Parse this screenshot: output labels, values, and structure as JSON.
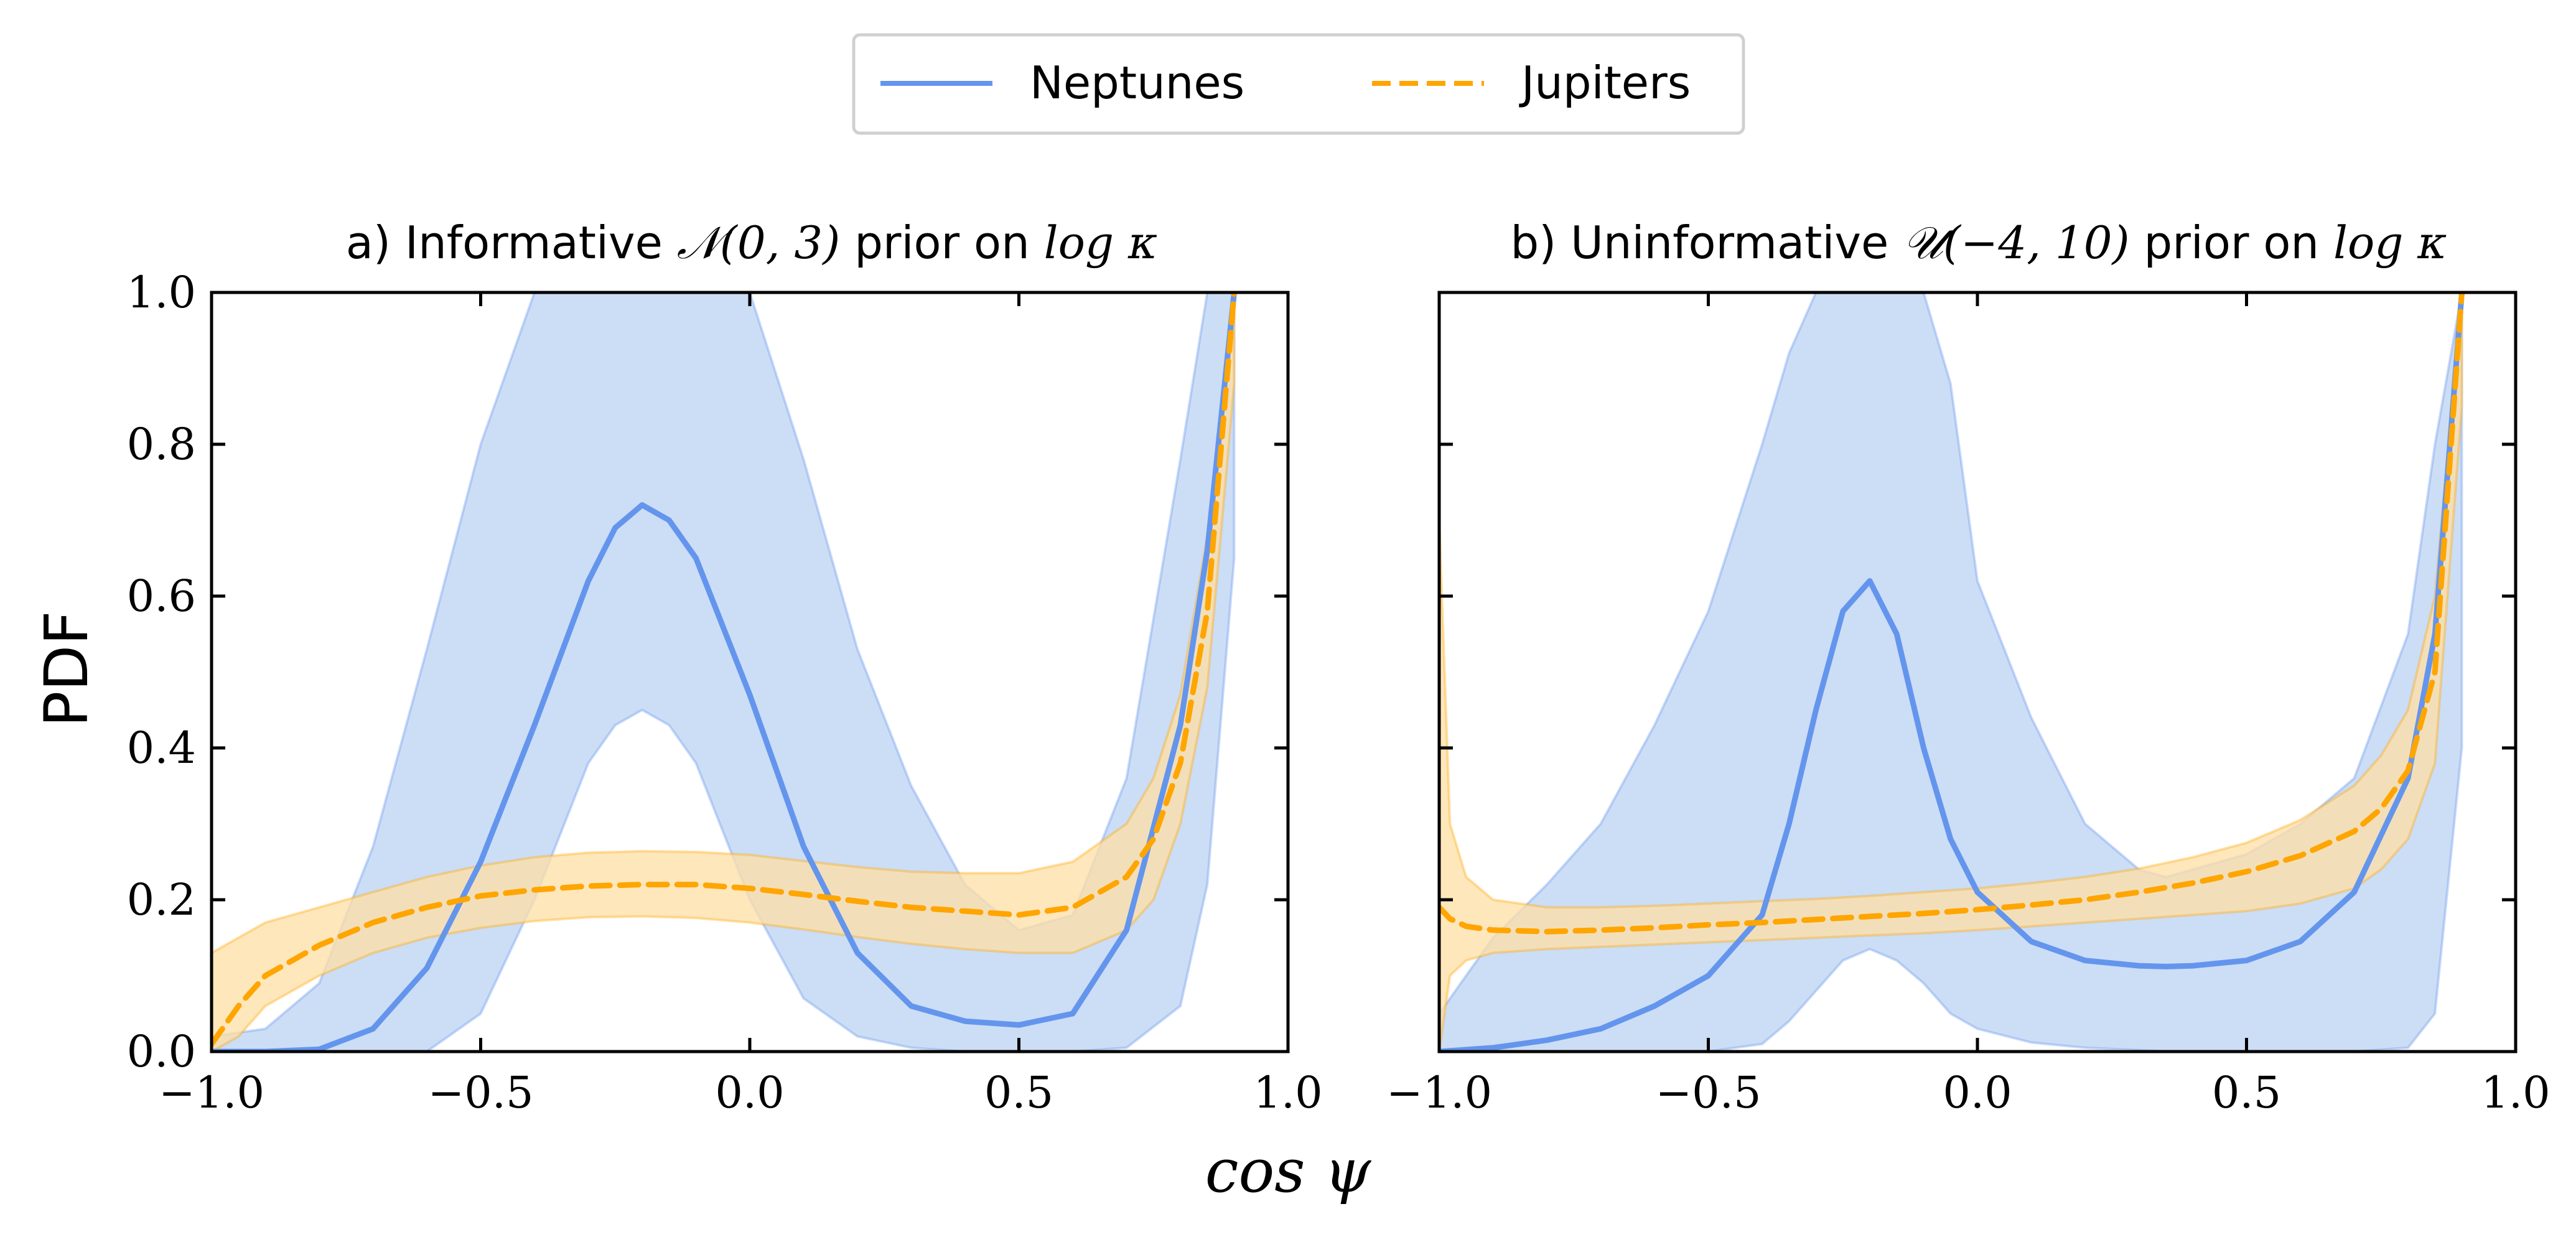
{
  "colors": {
    "neptunes": "#6495ED",
    "neptunes_band": "#C9DBF6",
    "jupiters": "#FFA500",
    "jupiters_band": "#FFDFA6"
  },
  "legend": {
    "placement": "top-center",
    "entries": [
      {
        "name": "Neptunes",
        "style": "solid"
      },
      {
        "name": "Jupiters",
        "style": "dashed"
      }
    ]
  },
  "figure": {
    "ylabel": "PDF",
    "xlabel": "cos ψ"
  },
  "chart_data": [
    {
      "type": "line",
      "title_prefix": "a) Informative ",
      "title_math": "𝒩(0, 3)",
      "title_mid": " prior on ",
      "title_math2": "log κ",
      "xlim": [
        -1.0,
        1.0
      ],
      "ylim": [
        0.0,
        1.0
      ],
      "xticks": [
        "−1.0",
        "−0.5",
        "0.0",
        "0.5",
        "1.0"
      ],
      "yticks": [
        "0.0",
        "0.2",
        "0.4",
        "0.6",
        "0.8",
        "1.0"
      ],
      "grid": false,
      "series": [
        {
          "name": "Neptunes",
          "x": [
            -1.0,
            -0.9,
            -0.8,
            -0.7,
            -0.6,
            -0.5,
            -0.4,
            -0.3,
            -0.25,
            -0.2,
            -0.15,
            -0.1,
            0.0,
            0.1,
            0.2,
            0.3,
            0.4,
            0.5,
            0.6,
            0.7,
            0.8,
            0.85,
            0.9
          ],
          "y": [
            0.0,
            0.0,
            0.003,
            0.03,
            0.11,
            0.25,
            0.43,
            0.62,
            0.69,
            0.72,
            0.7,
            0.65,
            0.47,
            0.27,
            0.13,
            0.06,
            0.04,
            0.035,
            0.05,
            0.16,
            0.43,
            0.66,
            1.0
          ],
          "lower": [
            0.0,
            0.0,
            0.0,
            0.0,
            0.0,
            0.05,
            0.2,
            0.38,
            0.43,
            0.45,
            0.43,
            0.38,
            0.2,
            0.07,
            0.02,
            0.005,
            0.0,
            0.0,
            0.0,
            0.005,
            0.06,
            0.22,
            0.65
          ],
          "upper": [
            0.02,
            0.03,
            0.09,
            0.27,
            0.53,
            0.8,
            1.0,
            1.0,
            1.0,
            1.0,
            1.0,
            1.0,
            1.0,
            0.78,
            0.53,
            0.35,
            0.22,
            0.16,
            0.18,
            0.36,
            0.78,
            1.0,
            1.0
          ]
        },
        {
          "name": "Jupiters",
          "x": [
            -1.0,
            -0.95,
            -0.9,
            -0.8,
            -0.7,
            -0.6,
            -0.5,
            -0.4,
            -0.3,
            -0.2,
            -0.1,
            0.0,
            0.1,
            0.2,
            0.3,
            0.4,
            0.5,
            0.6,
            0.7,
            0.75,
            0.8,
            0.85,
            0.9
          ],
          "y": [
            0.01,
            0.06,
            0.1,
            0.14,
            0.17,
            0.19,
            0.205,
            0.213,
            0.218,
            0.22,
            0.22,
            0.215,
            0.207,
            0.198,
            0.19,
            0.185,
            0.18,
            0.19,
            0.23,
            0.28,
            0.38,
            0.58,
            1.0
          ],
          "lower": [
            0.0,
            0.02,
            0.06,
            0.1,
            0.13,
            0.15,
            0.163,
            0.172,
            0.177,
            0.178,
            0.176,
            0.17,
            0.161,
            0.151,
            0.142,
            0.135,
            0.13,
            0.13,
            0.16,
            0.2,
            0.3,
            0.48,
            0.88
          ],
          "upper": [
            0.13,
            0.15,
            0.17,
            0.19,
            0.21,
            0.23,
            0.245,
            0.256,
            0.262,
            0.264,
            0.263,
            0.259,
            0.251,
            0.243,
            0.237,
            0.235,
            0.235,
            0.25,
            0.3,
            0.36,
            0.47,
            0.68,
            1.0
          ]
        }
      ]
    },
    {
      "type": "line",
      "title_prefix": "b) Uninformative ",
      "title_math": "𝒰(−4, 10)",
      "title_mid": " prior on ",
      "title_math2": "log κ",
      "xlim": [
        -1.0,
        1.0
      ],
      "ylim": [
        0.0,
        1.0
      ],
      "xticks": [
        "−1.0",
        "−0.5",
        "0.0",
        "0.5",
        "1.0"
      ],
      "yticks": [],
      "grid": false,
      "series": [
        {
          "name": "Neptunes",
          "x": [
            -1.0,
            -0.9,
            -0.8,
            -0.7,
            -0.6,
            -0.5,
            -0.4,
            -0.35,
            -0.3,
            -0.25,
            -0.2,
            -0.15,
            -0.1,
            -0.05,
            0.0,
            0.1,
            0.2,
            0.3,
            0.35,
            0.4,
            0.5,
            0.6,
            0.7,
            0.8,
            0.85,
            0.9
          ],
          "y": [
            0.0,
            0.005,
            0.015,
            0.03,
            0.06,
            0.1,
            0.18,
            0.3,
            0.45,
            0.58,
            0.62,
            0.55,
            0.4,
            0.28,
            0.21,
            0.145,
            0.12,
            0.113,
            0.112,
            0.113,
            0.12,
            0.145,
            0.21,
            0.36,
            0.55,
            1.0
          ],
          "lower": [
            0.0,
            0.0,
            0.0,
            0.0,
            0.0,
            0.0,
            0.01,
            0.04,
            0.08,
            0.12,
            0.135,
            0.12,
            0.09,
            0.05,
            0.03,
            0.012,
            0.005,
            0.002,
            0.0,
            0.0,
            0.0,
            0.0,
            0.0,
            0.005,
            0.05,
            0.4
          ],
          "upper": [
            0.05,
            0.15,
            0.22,
            0.3,
            0.43,
            0.58,
            0.8,
            0.92,
            1.0,
            1.0,
            1.0,
            1.0,
            1.0,
            0.88,
            0.62,
            0.44,
            0.3,
            0.24,
            0.23,
            0.24,
            0.26,
            0.3,
            0.36,
            0.55,
            0.8,
            1.0
          ]
        },
        {
          "name": "Jupiters",
          "x": [
            -1.0,
            -0.98,
            -0.95,
            -0.9,
            -0.8,
            -0.7,
            -0.6,
            -0.5,
            -0.4,
            -0.3,
            -0.2,
            -0.1,
            0.0,
            0.1,
            0.2,
            0.3,
            0.4,
            0.5,
            0.6,
            0.7,
            0.75,
            0.8,
            0.85,
            0.9
          ],
          "y": [
            0.19,
            0.175,
            0.165,
            0.16,
            0.158,
            0.16,
            0.163,
            0.167,
            0.17,
            0.174,
            0.178,
            0.182,
            0.187,
            0.193,
            0.2,
            0.21,
            0.222,
            0.237,
            0.258,
            0.29,
            0.32,
            0.37,
            0.5,
            1.0
          ],
          "lower": [
            0.0,
            0.1,
            0.12,
            0.13,
            0.135,
            0.138,
            0.141,
            0.144,
            0.147,
            0.15,
            0.153,
            0.156,
            0.16,
            0.165,
            0.17,
            0.175,
            0.18,
            0.185,
            0.195,
            0.215,
            0.24,
            0.28,
            0.38,
            0.85
          ],
          "upper": [
            0.7,
            0.3,
            0.23,
            0.2,
            0.19,
            0.19,
            0.192,
            0.195,
            0.198,
            0.201,
            0.205,
            0.21,
            0.215,
            0.222,
            0.23,
            0.241,
            0.256,
            0.275,
            0.305,
            0.35,
            0.39,
            0.45,
            0.6,
            1.0
          ]
        }
      ]
    }
  ]
}
